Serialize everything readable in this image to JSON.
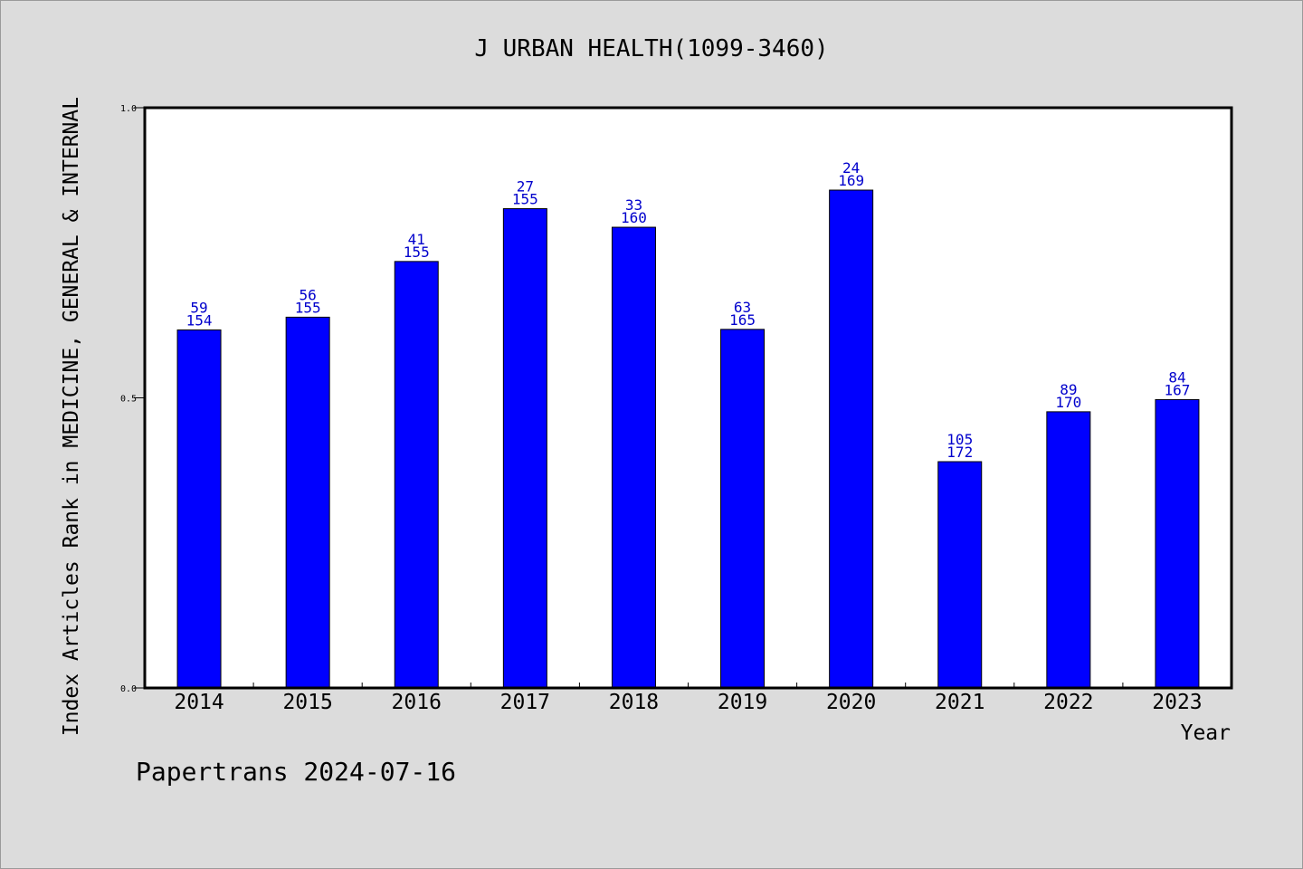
{
  "chart_data": {
    "type": "bar",
    "title": "J URBAN HEALTH(1099-3460)",
    "xlabel": "Year",
    "ylabel": "Index Articles Rank in MEDICINE, GENERAL & INTERNAL",
    "ylim": [
      0.0,
      1.0
    ],
    "yticks": [
      "0.0",
      "0.5",
      "1.0"
    ],
    "categories": [
      "2014",
      "2015",
      "2016",
      "2017",
      "2018",
      "2019",
      "2020",
      "2021",
      "2022",
      "2023"
    ],
    "values": [
      0.617,
      0.639,
      0.735,
      0.826,
      0.794,
      0.618,
      0.858,
      0.39,
      0.476,
      0.497
    ],
    "rank_labels": [
      "59",
      "56",
      "41",
      "27",
      "33",
      "63",
      "24",
      "105",
      "89",
      "84"
    ],
    "total_labels": [
      "154",
      "155",
      "155",
      "155",
      "160",
      "165",
      "169",
      "172",
      "170",
      "167"
    ],
    "bar_color": "#0000ff",
    "label_color": "#0000cc",
    "grid": false,
    "legend": "none"
  },
  "footer": {
    "text": "Papertrans 2024-07-16"
  }
}
